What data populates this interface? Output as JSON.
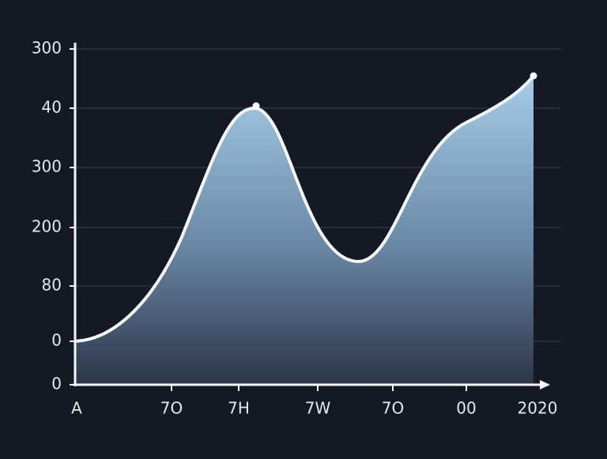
{
  "y_axis_labels": [
    "300",
    "40",
    "300",
    "200",
    "80",
    "0",
    "0"
  ],
  "x_axis_labels": [
    "A",
    "7O",
    "7H",
    "7W",
    "7O",
    "00",
    "2020"
  ]
}
